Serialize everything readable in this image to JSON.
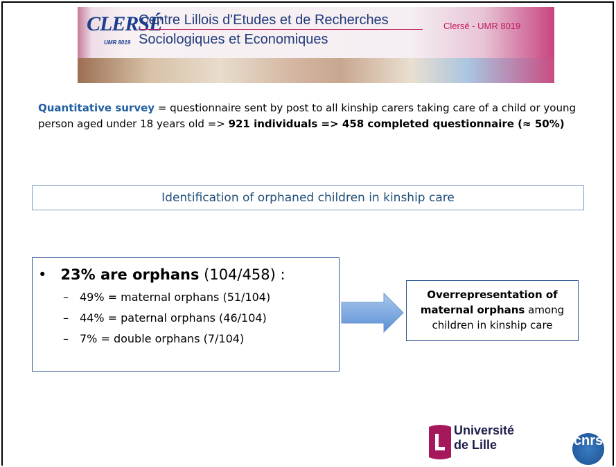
{
  "header": {
    "logo": "CLERSÉ",
    "logo_sub": "UMR 8019",
    "title_line1": "Centre Lillois d'Etudes et de Recherches",
    "title_line2": "Sociologiques et Economiques",
    "right_label": "Clersé - UMR 8019"
  },
  "intro": {
    "bold_start": "Quantitative survey",
    "text": " = questionnaire sent by post to all kinship carers taking care of a child or young person aged under 18 years old => ",
    "bold_end": "921 individuals => 458 completed questionnaire (≈ 50%)"
  },
  "section_title": "Identification of orphaned children in kinship care",
  "bullet": {
    "bold": "23% are orphans",
    "text": " (104/458) :",
    "sub_items": [
      "49% = maternal orphans (51/104)",
      "44% = paternal orphans (46/104)",
      "7% = double orphans (7/104)"
    ]
  },
  "callout": {
    "bold": "Overrepresentation of maternal orphans",
    "text": " among children in kinship care"
  },
  "footer": {
    "university_line1": "Université",
    "university_line2": "de Lille",
    "cnrs": "cnrs"
  }
}
